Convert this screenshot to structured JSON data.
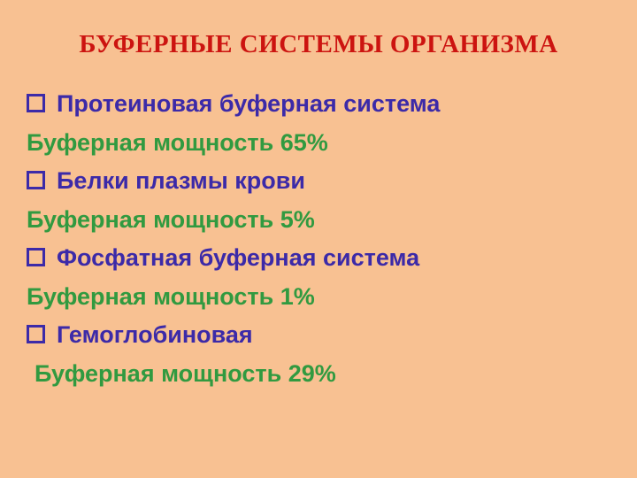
{
  "slide": {
    "title": "БУФЕРНЫЕ СИСТЕМЫ ОРГАНИЗМА",
    "items": [
      {
        "bullet": "hollow-square",
        "name": "Протеиновая буферная система",
        "capacity": "Буферная мощность 65%"
      },
      {
        "bullet": "hollow-square",
        "name": "Белки плазмы крови",
        "capacity": "Буферная мощность 5%"
      },
      {
        "bullet": "hollow-square",
        "name": "Фосфатная буферная система",
        "capacity": "Буферная мощность 1%"
      },
      {
        "bullet": "hollow-square",
        "name": "Гемоглобиновая",
        "capacity": "Буферная мощность 29%"
      }
    ],
    "colors": {
      "background": "#f8c192",
      "title_text": "#cc1410",
      "item_text": "#3c2aa8",
      "capacity_text": "#319a40"
    }
  }
}
